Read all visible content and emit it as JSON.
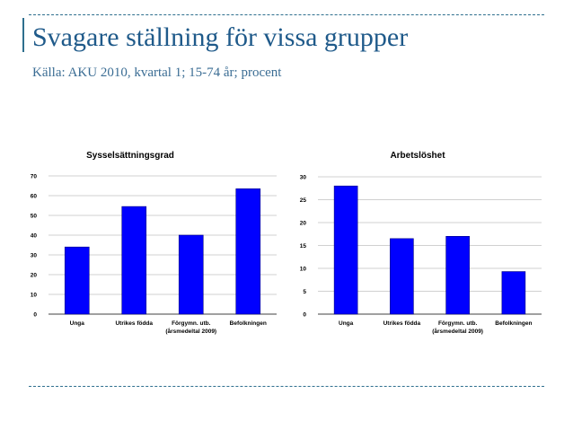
{
  "slide": {
    "title": "Svagare ställning för vissa grupper",
    "subtitle": "Källa: AKU 2010, kvartal 1; 15-74 år;  procent"
  },
  "colors": {
    "bar": "#0000ff",
    "bar_stroke": "#000080",
    "title": "#1f5a8a",
    "rule": "#2e6f8e",
    "grid": "#c0c0c0"
  },
  "chart_data": [
    {
      "type": "bar",
      "title": "Sysselsättningsgrad",
      "categories": [
        "Unga",
        "Utrikes födda",
        "Förgymn. utb.\n(årsmedeltal 2009)",
        "Befolkningen"
      ],
      "values": [
        34,
        54.5,
        40,
        63.5
      ],
      "ylim": [
        0,
        70
      ],
      "yticks": [
        0,
        10,
        20,
        30,
        40,
        50,
        60,
        70
      ],
      "grid": true,
      "legend": "none"
    },
    {
      "type": "bar",
      "title": "Arbetslöshet",
      "categories": [
        "Unga",
        "Utrikes födda",
        "Förgymn. utb.\n(årsmedeltal 2009)",
        "Befolkningen"
      ],
      "values": [
        28,
        16.5,
        17,
        9.3
      ],
      "ylim": [
        0,
        30
      ],
      "yticks": [
        0,
        5,
        10,
        15,
        20,
        25,
        30
      ],
      "grid": true,
      "legend": "none"
    }
  ]
}
